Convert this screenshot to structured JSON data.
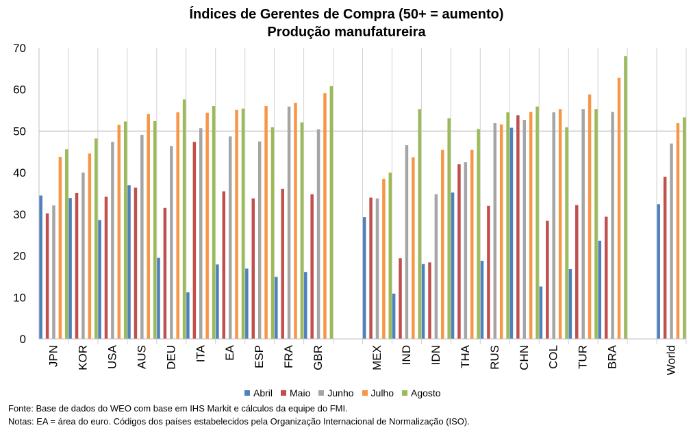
{
  "chart_data": {
    "type": "bar",
    "title": [
      "Índices de Gerentes de Compra (50+ = aumento)",
      "Produção manufatureira"
    ],
    "xlabel": "",
    "ylabel": "",
    "ylim": [
      0,
      70
    ],
    "yticks": [
      0,
      10,
      20,
      30,
      40,
      50,
      60,
      70
    ],
    "reference_line": 50,
    "legend_position": "bottom",
    "categories": [
      "JPN",
      "KOR",
      "USA",
      "AUS",
      "DEU",
      "ITA",
      "EA",
      "ESP",
      "FRA",
      "GBR",
      "MEX",
      "IND",
      "IDN",
      "THA",
      "RUS",
      "CHN",
      "COL",
      "TUR",
      "BRA",
      "World"
    ],
    "groups": [
      [
        "JPN",
        "KOR",
        "USA",
        "AUS",
        "DEU",
        "ITA",
        "EA",
        "ESP",
        "FRA",
        "GBR"
      ],
      [
        "MEX",
        "IND",
        "IDN",
        "THA",
        "RUS",
        "CHN",
        "COL",
        "TUR",
        "BRA"
      ],
      [
        "World"
      ]
    ],
    "series": [
      {
        "name": "Abril",
        "color": "#4F81BD",
        "values": [
          34.5,
          33.9,
          28.6,
          37.0,
          19.5,
          11.2,
          17.9,
          16.9,
          14.9,
          16.1,
          29.3,
          10.9,
          18.0,
          35.2,
          18.8,
          50.8,
          12.6,
          16.8,
          23.6,
          32.4
        ]
      },
      {
        "name": "Maio",
        "color": "#C0504D",
        "values": [
          30.2,
          35.1,
          34.2,
          36.4,
          31.5,
          47.4,
          35.5,
          33.8,
          36.1,
          34.8,
          34.0,
          19.4,
          18.4,
          42.0,
          32.0,
          53.8,
          28.4,
          32.2,
          29.4,
          39.0
        ]
      },
      {
        "name": "Junho",
        "color": "#A5A5A5",
        "values": [
          32.1,
          40.0,
          47.4,
          49.1,
          46.4,
          50.7,
          48.7,
          47.5,
          55.9,
          50.4,
          33.8,
          46.6,
          34.8,
          42.5,
          51.9,
          52.7,
          54.5,
          55.3,
          54.6,
          47.0
        ]
      },
      {
        "name": "Julho",
        "color": "#F79646",
        "values": [
          43.8,
          44.6,
          51.5,
          54.1,
          54.5,
          54.4,
          55.1,
          56.0,
          56.8,
          59.1,
          38.5,
          43.7,
          45.5,
          45.5,
          51.6,
          54.6,
          55.3,
          58.8,
          62.8,
          51.9
        ]
      },
      {
        "name": "Agosto",
        "color": "#9BBB59",
        "values": [
          45.6,
          48.2,
          52.3,
          52.4,
          57.6,
          56.0,
          55.4,
          50.9,
          52.1,
          60.8,
          40.0,
          55.3,
          53.1,
          50.5,
          54.5,
          55.9,
          50.9,
          55.3,
          68.0,
          53.3
        ]
      }
    ]
  },
  "notes": {
    "source": "Fonte: Base de dados do WEO com base em IHS Markit e cálculos da equipe do FMI.",
    "notes": "Notas: EA = área do euro. Códigos dos países estabelecidos pela Organização Internacional de Normalização (ISO)."
  }
}
